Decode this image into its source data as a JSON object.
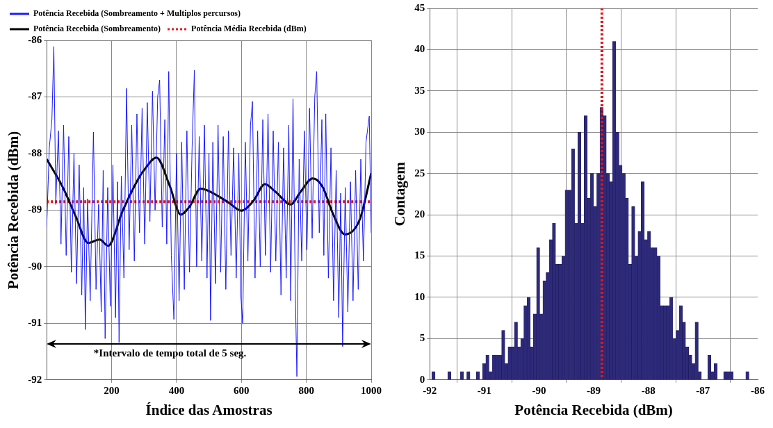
{
  "chart_data": [
    {
      "type": "line",
      "xlabel": "Índice das Amostras",
      "ylabel": "Potência Recebida (dBm)",
      "xlim": [
        0,
        1000
      ],
      "xticks": [
        200,
        400,
        600,
        800,
        1000
      ],
      "ylim": [
        -92,
        -86
      ],
      "yticks": [
        -92,
        -91,
        -90,
        -89,
        -88,
        -87,
        -86
      ],
      "grid": true,
      "legend": "top",
      "marker": "none",
      "annotations": [
        "*Intervalo de tempo total de 5 seg."
      ],
      "series": [
        {
          "name": "Potência Recebida (Sombreamento + Multiplos percursos)",
          "color": "#1a1aff",
          "x": [
            0,
            8,
            16,
            22,
            28,
            36,
            44,
            52,
            60,
            68,
            76,
            84,
            92,
            100,
            108,
            114,
            119,
            126,
            134,
            144,
            152,
            160,
            168,
            174,
            180,
            188,
            196,
            204,
            212,
            218,
            223,
            230,
            238,
            246,
            254,
            262,
            270,
            278,
            286,
            294,
            302,
            310,
            318,
            326,
            334,
            342,
            348,
            356,
            364,
            370,
            376,
            384,
            392,
            400,
            408,
            416,
            424,
            432,
            440,
            448,
            455,
            462,
            470,
            478,
            486,
            494,
            500,
            505,
            512,
            520,
            528,
            536,
            544,
            552,
            560,
            568,
            576,
            584,
            592,
            598,
            604,
            612,
            620,
            628,
            634,
            642,
            650,
            658,
            666,
            674,
            682,
            690,
            698,
            706,
            714,
            722,
            730,
            738,
            746,
            752,
            759,
            766,
            771,
            778,
            786,
            794,
            802,
            810,
            818,
            826,
            832,
            840,
            848,
            854,
            860,
            868,
            876,
            884,
            892,
            900,
            906,
            912,
            920,
            928,
            936,
            944,
            952,
            960,
            968,
            976,
            984,
            994,
            1000
          ],
          "values": [
            -89.3,
            -87.9,
            -87.4,
            -86.11,
            -88.9,
            -87.6,
            -89.6,
            -87.5,
            -89.8,
            -87.7,
            -90.1,
            -88.0,
            -90.3,
            -88.2,
            -90.5,
            -88.6,
            -91.11,
            -88.8,
            -90.6,
            -87.62,
            -90.4,
            -88.9,
            -90.8,
            -88.3,
            -91.27,
            -88.6,
            -90.7,
            -88.2,
            -90.9,
            -88.5,
            -91.34,
            -88.4,
            -90.2,
            -86.85,
            -89.7,
            -87.5,
            -89.9,
            -87.3,
            -89.4,
            -87.2,
            -89.6,
            -87.1,
            -89.2,
            -86.9,
            -89.0,
            -87.0,
            -86.7,
            -89.3,
            -87.4,
            -89.6,
            -86.55,
            -89.8,
            -90.93,
            -88.0,
            -90.6,
            -87.8,
            -90.4,
            -87.6,
            -90.1,
            -87.9,
            -86.53,
            -90.0,
            -87.7,
            -89.9,
            -87.5,
            -90.2,
            -88.0,
            -90.95,
            -87.8,
            -90.3,
            -87.5,
            -90.1,
            -87.7,
            -90.4,
            -87.6,
            -89.8,
            -87.9,
            -90.2,
            -88.0,
            -90.5,
            -91.0,
            -87.8,
            -89.9,
            -87.5,
            -87.08,
            -90.2,
            -87.6,
            -90.0,
            -87.4,
            -89.8,
            -87.3,
            -90.1,
            -87.6,
            -89.9,
            -87.8,
            -90.5,
            -87.9,
            -90.2,
            -87.5,
            -90.6,
            -87.03,
            -90.4,
            -91.94,
            -88.1,
            -89.9,
            -87.6,
            -89.7,
            -87.2,
            -89.5,
            -87.0,
            -86.55,
            -89.4,
            -87.4,
            -89.8,
            -87.3,
            -90.2,
            -87.9,
            -90.6,
            -88.3,
            -90.9,
            -88.7,
            -91.41,
            -88.6,
            -90.8,
            -88.5,
            -90.6,
            -88.3,
            -90.4,
            -88.1,
            -89.9,
            -87.8,
            -87.34,
            -89.4
          ]
        },
        {
          "name": "Potência Recebida (Sombreamento)",
          "color": "#000000",
          "x": [
            0,
            50,
            90,
            128,
            163,
            189,
            235,
            288,
            303,
            338,
            379,
            413,
            440,
            474,
            531,
            561,
            600,
            638,
            672,
            706,
            752,
            782,
            820,
            851,
            881,
            919,
            965,
            1000
          ],
          "values": [
            -88.1,
            -88.6,
            -89.12,
            -89.58,
            -89.52,
            -89.63,
            -89.0,
            -88.39,
            -88.27,
            -88.07,
            -88.57,
            -89.08,
            -88.94,
            -88.62,
            -88.76,
            -88.87,
            -89.01,
            -88.83,
            -88.54,
            -88.68,
            -88.9,
            -88.68,
            -88.44,
            -88.6,
            -89.05,
            -89.43,
            -89.16,
            -88.35
          ]
        },
        {
          "name": "Potência Média Recebida (dBm)",
          "color": "#e0141e",
          "line_style": "dotted",
          "x": [
            0,
            1000
          ],
          "values": [
            -88.85,
            -88.85
          ]
        }
      ]
    },
    {
      "type": "histogram",
      "xlabel": "Potência Recebida (dBm)",
      "ylabel": "Contagem",
      "xlim": [
        -92,
        -86
      ],
      "xticks": [
        -92,
        -91,
        -90,
        -89,
        -88,
        -87,
        -86
      ],
      "ylim": [
        0,
        45
      ],
      "yticks": [
        0,
        5,
        10,
        15,
        20,
        25,
        30,
        35,
        40,
        45
      ],
      "grid": true,
      "color": "#2e2a7a",
      "bins": [
        -91.96,
        -91.902,
        -91.844,
        -91.786,
        -91.728,
        -91.67,
        -91.612,
        -91.554,
        -91.496,
        -91.438,
        -91.38,
        -91.322,
        -91.264,
        -91.206,
        -91.148,
        -91.09,
        -91.032,
        -90.974,
        -90.916,
        -90.858,
        -90.8,
        -90.742,
        -90.684,
        -90.626,
        -90.568,
        -90.51,
        -90.452,
        -90.394,
        -90.336,
        -90.278,
        -90.22,
        -90.162,
        -90.104,
        -90.046,
        -89.988,
        -89.93,
        -89.872,
        -89.814,
        -89.756,
        -89.698,
        -89.64,
        -89.582,
        -89.524,
        -89.466,
        -89.408,
        -89.35,
        -89.292,
        -89.234,
        -89.176,
        -89.118,
        -89.06,
        -89.002,
        -88.944,
        -88.886,
        -88.828,
        -88.77,
        -88.712,
        -88.654,
        -88.596,
        -88.538,
        -88.48,
        -88.422,
        -88.364,
        -88.306,
        -88.248,
        -88.19,
        -88.132,
        -88.074,
        -88.016,
        -87.958,
        -87.9,
        -87.842,
        -87.784,
        -87.726,
        -87.668,
        -87.61,
        -87.552,
        -87.494,
        -87.436,
        -87.378,
        -87.32,
        -87.262,
        -87.204,
        -87.146,
        -87.088,
        -87.03,
        -86.972,
        -86.914,
        -86.856,
        -86.798,
        -86.74,
        -86.682,
        -86.624,
        -86.566,
        -86.508,
        -86.45,
        -86.392,
        -86.334,
        -86.276,
        -86.218,
        -86.16
      ],
      "values": [
        1,
        0,
        0,
        0,
        0,
        1,
        0,
        0,
        0,
        1,
        0,
        1,
        0,
        0,
        1,
        0,
        2,
        3,
        1,
        3,
        3,
        3,
        6,
        2,
        4,
        4,
        7,
        4,
        5,
        9,
        10,
        4,
        8,
        16,
        8,
        12,
        13,
        17,
        19,
        14,
        14,
        15,
        23,
        23,
        28,
        19,
        30,
        19,
        32,
        22,
        25,
        21,
        25,
        33,
        32,
        25,
        24,
        41,
        30,
        26,
        25,
        22,
        14,
        21,
        15,
        18,
        24,
        17,
        18,
        16,
        16,
        15,
        9,
        9,
        9,
        10,
        5,
        6,
        9,
        7,
        4,
        3,
        2,
        7,
        1,
        0,
        0,
        3,
        1,
        2,
        0,
        0,
        1,
        1,
        1,
        0,
        0,
        0,
        0,
        1
      ],
      "ref_lines": [
        {
          "axis": "x",
          "value": -88.85,
          "color": "#e0141e",
          "line_style": "dotted"
        }
      ]
    }
  ]
}
